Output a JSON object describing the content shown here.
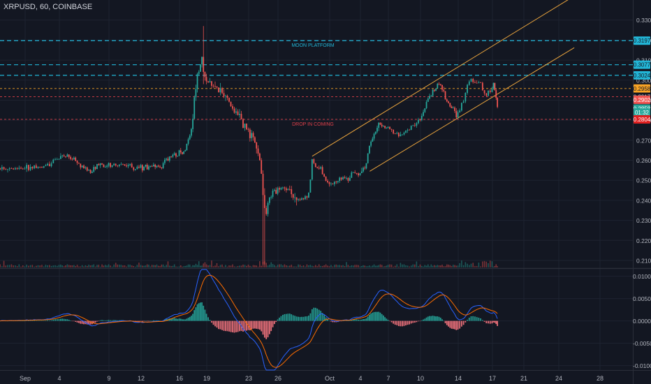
{
  "header": {
    "symbol_label": "XRPUSD, 60, COINBASE"
  },
  "colors": {
    "background": "#131722",
    "grid": "#1e2330",
    "text": "#b2b5be",
    "up": "#26a69a",
    "down": "#ef5350",
    "cyan": "#22b5d6",
    "orange": "#f7a325",
    "red_dashed": "#e0404a",
    "channel": "#e8a33d",
    "macd": "#2962ff",
    "signal": "#ff6d00"
  },
  "chart_data": [
    {
      "type": "candlestick",
      "title": "",
      "ylim": [
        0.2065,
        0.34
      ],
      "y_ticks": [
        0.21,
        0.22,
        0.23,
        0.24,
        0.25,
        0.26,
        0.27,
        0.28,
        0.29,
        0.3,
        0.31,
        0.32,
        0.33,
        0.34
      ],
      "y_tick_labels": [
        "0.2100",
        "0.2200",
        "0.2300",
        "0.2400",
        "0.2500",
        "0.2600",
        "0.2700",
        "0.2800",
        "0.2900",
        "0.3000",
        "0.3100",
        "0.3200",
        "0.3300",
        "0.3400"
      ],
      "x_ticks": [
        "Sep",
        "4",
        "9",
        "12",
        "16",
        "19",
        "23",
        "26",
        "Oct",
        "4",
        "7",
        "10",
        "14",
        "17",
        "21",
        "24",
        "28"
      ],
      "horizontal_levels": [
        {
          "price": 0.3197,
          "color": "cyan",
          "label": "MOON PLATFORM"
        },
        {
          "price": 0.3077,
          "color": "cyan",
          "label": ""
        },
        {
          "price": 0.3024,
          "color": "cyan",
          "label": ""
        },
        {
          "price": 0.2958,
          "color": "orange",
          "label": ""
        },
        {
          "price": 0.2917,
          "color": "red_dashed",
          "label": ""
        },
        {
          "price": 0.2804,
          "color": "red_dashed",
          "label": "DROP IN COMING"
        }
      ],
      "price_badges": [
        {
          "text": "0.3197",
          "bg": "#22b5d6",
          "fg": "#131722",
          "price": 0.3197
        },
        {
          "text": "0.3077",
          "bg": "#22b5d6",
          "fg": "#131722",
          "price": 0.3077
        },
        {
          "text": "0.3024",
          "bg": "#22b5d6",
          "fg": "#131722",
          "price": 0.3024
        },
        {
          "text": "0.2958",
          "bg": "#f7a325",
          "fg": "#131722",
          "price": 0.2958
        },
        {
          "text": "0.2917",
          "bg": "#131722",
          "fg": "#d1d4dc",
          "price": 0.2917
        },
        {
          "text": "0.2902",
          "bg": "#ef5350",
          "fg": "#ffffff",
          "price": 0.2902
        },
        {
          "text": "0.2858",
          "bg": "#26a69a",
          "fg": "#ffffff",
          "price": 0.2858
        },
        {
          "text": "01:32",
          "bg": "#26a69a",
          "fg": "#ffffff",
          "price": 0.2838
        },
        {
          "text": "0.2804",
          "bg": "#e02020",
          "fg": "#ffffff",
          "price": 0.2804
        }
      ],
      "anchors": [
        {
          "day": 0,
          "price": 0.256
        },
        {
          "day": 2,
          "price": 0.257
        },
        {
          "day": 3,
          "price": 0.262
        },
        {
          "day": 4,
          "price": 0.262
        },
        {
          "day": 6,
          "price": 0.254
        },
        {
          "day": 7,
          "price": 0.258
        },
        {
          "day": 9,
          "price": 0.258
        },
        {
          "day": 11,
          "price": 0.256
        },
        {
          "day": 13,
          "price": 0.257
        },
        {
          "day": 14,
          "price": 0.262
        },
        {
          "day": 15.5,
          "price": 0.264
        },
        {
          "day": 16.3,
          "price": 0.275
        },
        {
          "day": 17,
          "price": 0.305
        },
        {
          "day": 17.4,
          "price": 0.31
        },
        {
          "day": 17.8,
          "price": 0.304
        },
        {
          "day": 18.2,
          "price": 0.298
        },
        {
          "day": 19.5,
          "price": 0.294
        },
        {
          "day": 21,
          "price": 0.282
        },
        {
          "day": 22.5,
          "price": 0.272
        },
        {
          "day": 23.3,
          "price": 0.256
        },
        {
          "day": 23.6,
          "price": 0.234
        },
        {
          "day": 24.5,
          "price": 0.244
        },
        {
          "day": 26,
          "price": 0.244
        },
        {
          "day": 27,
          "price": 0.24
        },
        {
          "day": 28,
          "price": 0.242
        },
        {
          "day": 28.3,
          "price": 0.26
        },
        {
          "day": 29,
          "price": 0.256
        },
        {
          "day": 30,
          "price": 0.248
        },
        {
          "day": 31,
          "price": 0.25
        },
        {
          "day": 32,
          "price": 0.252
        },
        {
          "day": 33.5,
          "price": 0.256
        },
        {
          "day": 34,
          "price": 0.268
        },
        {
          "day": 35,
          "price": 0.278
        },
        {
          "day": 36,
          "price": 0.276
        },
        {
          "day": 37,
          "price": 0.272
        },
        {
          "day": 38,
          "price": 0.276
        },
        {
          "day": 39,
          "price": 0.28
        },
        {
          "day": 40,
          "price": 0.292
        },
        {
          "day": 41,
          "price": 0.298
        },
        {
          "day": 42,
          "price": 0.288
        },
        {
          "day": 43,
          "price": 0.282
        },
        {
          "day": 44,
          "price": 0.3
        },
        {
          "day": 45,
          "price": 0.298
        },
        {
          "day": 45.5,
          "price": 0.292
        },
        {
          "day": 46.2,
          "price": 0.298
        },
        {
          "day": 46.7,
          "price": 0.285
        }
      ],
      "spikes": [
        {
          "day": 17.6,
          "high": 0.327,
          "low": 0.298
        },
        {
          "day": 23.55,
          "high": 0.246,
          "low": 0.208
        }
      ],
      "channel": {
        "upper": [
          {
            "day": 28.3,
            "price": 0.262
          },
          {
            "day": 54.5,
            "price": 0.342
          }
        ],
        "lower": [
          {
            "day": 34,
            "price": 0.2545
          },
          {
            "day": 54.5,
            "price": 0.3162
          }
        ]
      },
      "volume_max": 1.0
    },
    {
      "type": "histogram-line",
      "title": "",
      "ylim": [
        -0.011,
        0.0115
      ],
      "y_ticks": [
        -0.01,
        -0.005,
        0,
        0.005,
        0.01
      ],
      "y_tick_labels": [
        "-0.0100",
        "-0.0050",
        "0.0000",
        "0.0050",
        "0.0100"
      ]
    }
  ]
}
